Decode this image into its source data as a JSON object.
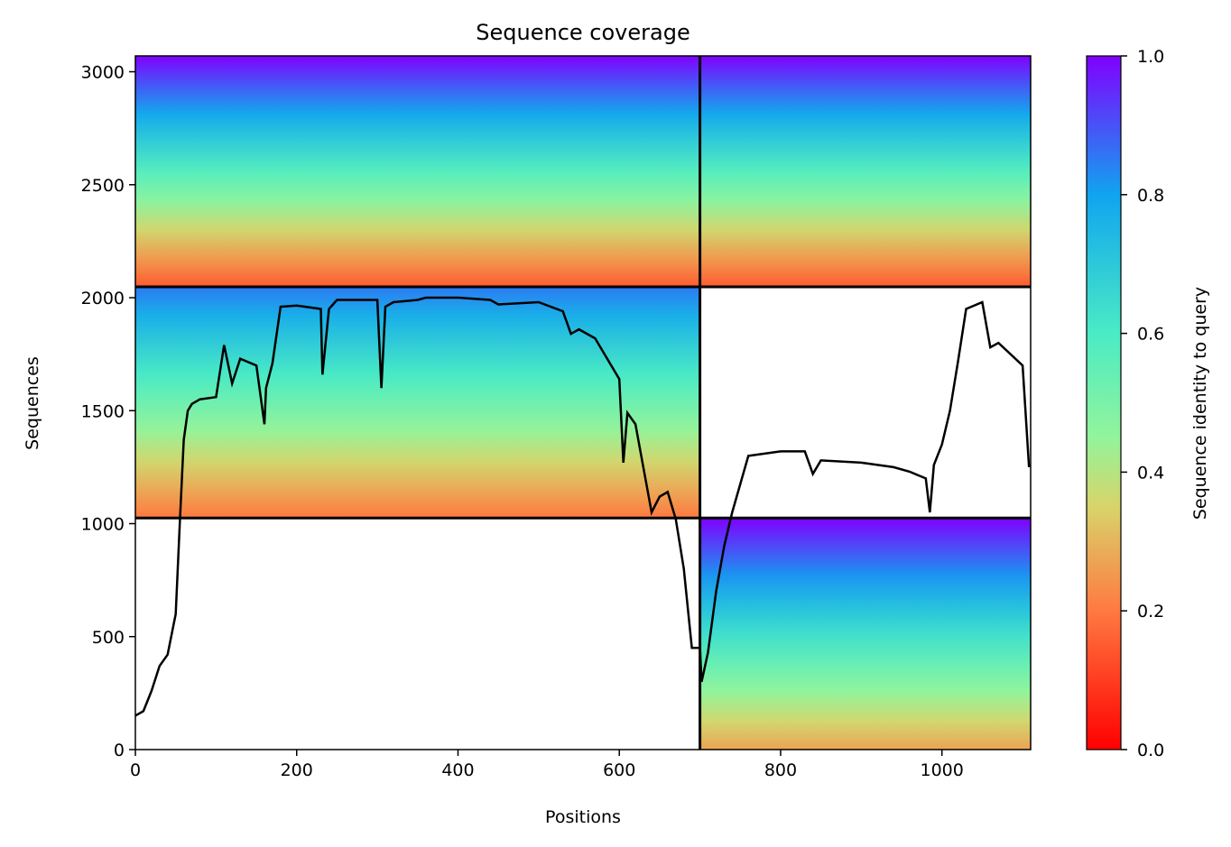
{
  "chart_data": {
    "type": "heatmap",
    "title": "Sequence coverage",
    "xlabel": "Positions",
    "ylabel": "Sequences",
    "xlim": [
      0,
      1110
    ],
    "ylim": [
      0,
      3070
    ],
    "x_ticks": [
      0,
      200,
      400,
      600,
      800,
      1000
    ],
    "y_ticks": [
      0,
      500,
      1000,
      1500,
      2000,
      2500,
      3000
    ],
    "colorbar": {
      "label": "Sequence identity to query",
      "range": [
        0.0,
        1.0
      ],
      "ticks": [
        "0.0",
        "0.2",
        "0.4",
        "0.6",
        "0.8",
        "1.0"
      ],
      "colormap": "rainbow_r"
    },
    "chain_boundaries": {
      "positions": [
        700
      ],
      "sequences": [
        1025,
        2048
      ]
    },
    "blocks": [
      {
        "x": [
          0,
          700
        ],
        "y": [
          2048,
          3070
        ],
        "identity_top": 1.0,
        "identity_bottom": 0.15
      },
      {
        "x": [
          700,
          1110
        ],
        "y": [
          2048,
          3070
        ],
        "identity_top": 1.0,
        "identity_bottom": 0.15
      },
      {
        "x": [
          0,
          700
        ],
        "y": [
          1025,
          2048
        ],
        "identity_top": 0.85,
        "identity_bottom": 0.2
      },
      {
        "x": [
          700,
          1110
        ],
        "y": [
          0,
          1025
        ],
        "identity_top": 1.0,
        "identity_bottom": 0.27
      }
    ],
    "coverage": {
      "x": [
        0,
        10,
        20,
        30,
        40,
        50,
        55,
        60,
        65,
        70,
        80,
        100,
        110,
        120,
        130,
        150,
        160,
        162,
        170,
        180,
        200,
        230,
        232,
        240,
        250,
        300,
        305,
        310,
        320,
        350,
        360,
        400,
        440,
        450,
        500,
        530,
        540,
        550,
        570,
        600,
        605,
        610,
        620,
        640,
        650,
        660,
        670,
        680,
        690,
        700,
        702,
        710,
        720,
        730,
        740,
        760,
        800,
        830,
        840,
        850,
        900,
        940,
        960,
        980,
        985,
        990,
        1000,
        1010,
        1020,
        1030,
        1050,
        1060,
        1070,
        1100,
        1108
      ],
      "y": [
        150,
        170,
        260,
        370,
        420,
        600,
        1000,
        1370,
        1500,
        1530,
        1550,
        1560,
        1790,
        1620,
        1730,
        1700,
        1440,
        1600,
        1710,
        1960,
        1965,
        1950,
        1660,
        1950,
        1990,
        1990,
        1600,
        1960,
        1980,
        1990,
        2000,
        2000,
        1990,
        1970,
        1980,
        1940,
        1840,
        1860,
        1820,
        1640,
        1270,
        1490,
        1440,
        1050,
        1120,
        1140,
        1020,
        800,
        450,
        450,
        300,
        430,
        700,
        900,
        1050,
        1300,
        1320,
        1320,
        1220,
        1280,
        1270,
        1250,
        1230,
        1200,
        1050,
        1260,
        1350,
        1500,
        1720,
        1950,
        1980,
        1780,
        1800,
        1700,
        1250
      ]
    }
  }
}
